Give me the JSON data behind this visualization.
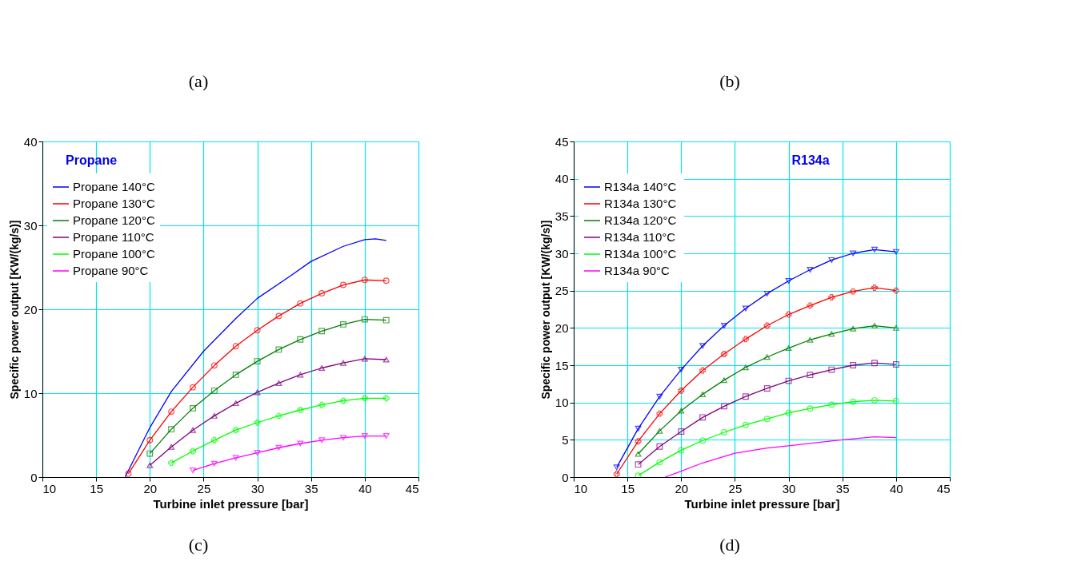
{
  "chart_data": [
    {
      "type": "line",
      "title": "Propane",
      "xlabel": "Turbine inlet pressure [bar]",
      "ylabel": "Specific power output [KW/(kg/s)]",
      "annotations": [
        "(a)",
        "(c)"
      ],
      "xlim": [
        10,
        45
      ],
      "xticks": [
        10,
        15,
        20,
        25,
        30,
        35,
        40,
        45
      ],
      "ylim": [
        0,
        40
      ],
      "yticks": [
        0,
        10,
        20,
        30,
        40
      ],
      "grid": true,
      "legend": "top left",
      "series": [
        {
          "name": "Propane 140°C",
          "color": "#0000ff",
          "marker": "none",
          "x": [
            17.7,
            20,
            22,
            25,
            28,
            30,
            33,
            35,
            38,
            40,
            41,
            42
          ],
          "values": [
            0,
            5.9,
            10.2,
            15.0,
            18.9,
            21.3,
            23.9,
            25.7,
            27.5,
            28.3,
            28.4,
            28.2
          ]
        },
        {
          "name": "Propane 130°C",
          "color": "#ff0000",
          "marker": "circle",
          "x": [
            18,
            20,
            22,
            24,
            26,
            28,
            30,
            32,
            34,
            36,
            38,
            40,
            42
          ],
          "values": [
            0.4,
            4.4,
            7.8,
            10.7,
            13.3,
            15.6,
            17.5,
            19.2,
            20.7,
            21.9,
            22.9,
            23.5,
            23.4
          ]
        },
        {
          "name": "Propane 120°C",
          "color": "#008000",
          "marker": "square",
          "x": [
            20,
            22,
            24,
            26,
            28,
            30,
            32,
            34,
            36,
            38,
            40,
            42
          ],
          "values": [
            2.8,
            5.7,
            8.2,
            10.3,
            12.2,
            13.8,
            15.2,
            16.4,
            17.4,
            18.2,
            18.8,
            18.7
          ]
        },
        {
          "name": "Propane 110°C",
          "color": "#800080",
          "marker": "triangle",
          "x": [
            20,
            22,
            24,
            26,
            28,
            30,
            32,
            34,
            36,
            38,
            40,
            42
          ],
          "values": [
            1.4,
            3.6,
            5.6,
            7.3,
            8.8,
            10.1,
            11.2,
            12.2,
            13.0,
            13.6,
            14.1,
            14.0
          ]
        },
        {
          "name": "Propane 100°C",
          "color": "#00ff00",
          "marker": "cross",
          "x": [
            22,
            24,
            26,
            28,
            30,
            32,
            34,
            36,
            38,
            40,
            42
          ],
          "values": [
            1.7,
            3.1,
            4.4,
            5.6,
            6.5,
            7.3,
            8.0,
            8.6,
            9.1,
            9.4,
            9.4
          ]
        },
        {
          "name": "Propane 90°C",
          "color": "#ff00ff",
          "marker": "triangle-down",
          "x": [
            24,
            26,
            28,
            30,
            32,
            34,
            36,
            38,
            40,
            42
          ],
          "values": [
            0.8,
            1.6,
            2.3,
            2.9,
            3.5,
            4.0,
            4.4,
            4.7,
            4.9,
            4.9
          ]
        }
      ]
    },
    {
      "type": "line",
      "title": "R134a",
      "xlabel": "Turbine inlet pressure [bar]",
      "ylabel": "Specific power output [KW/(kg/s)]",
      "annotations": [
        "(b)",
        "(d)"
      ],
      "xlim": [
        10,
        45
      ],
      "xticks": [
        10,
        15,
        20,
        25,
        30,
        35,
        40,
        45
      ],
      "ylim": [
        0,
        45
      ],
      "yticks": [
        0,
        5,
        10,
        15,
        20,
        25,
        30,
        35,
        40,
        45
      ],
      "grid": true,
      "legend": "top left",
      "series": [
        {
          "name": "R134a 140°C",
          "color": "#0000ff",
          "marker": "triangle-down",
          "x": [
            14,
            16,
            18,
            20,
            22,
            24,
            26,
            28,
            30,
            32,
            34,
            36,
            38,
            40
          ],
          "values": [
            1.3,
            6.5,
            10.8,
            14.4,
            17.6,
            20.3,
            22.6,
            24.6,
            26.3,
            27.8,
            29.1,
            30.0,
            30.5,
            30.2
          ]
        },
        {
          "name": "R134a 130°C",
          "color": "#ff0000",
          "marker": "cross",
          "x": [
            14,
            16,
            18,
            20,
            22,
            24,
            26,
            28,
            30,
            32,
            34,
            36,
            38,
            40
          ],
          "values": [
            0.4,
            4.8,
            8.5,
            11.6,
            14.3,
            16.5,
            18.5,
            20.3,
            21.8,
            23.0,
            24.1,
            24.9,
            25.4,
            25.0
          ]
        },
        {
          "name": "R134a 120°C",
          "color": "#008000",
          "marker": "triangle",
          "x": [
            16,
            18,
            20,
            22,
            24,
            26,
            28,
            30,
            32,
            34,
            36,
            38,
            40
          ],
          "values": [
            3.1,
            6.2,
            8.9,
            11.1,
            13.0,
            14.7,
            16.1,
            17.3,
            18.4,
            19.2,
            19.9,
            20.3,
            20.0
          ]
        },
        {
          "name": "R134a  110°C",
          "color": "#800080",
          "marker": "square",
          "x": [
            16,
            18,
            20,
            22,
            24,
            26,
            28,
            30,
            32,
            34,
            36,
            38,
            40
          ],
          "values": [
            1.7,
            4.1,
            6.1,
            8.0,
            9.5,
            10.8,
            11.9,
            12.9,
            13.7,
            14.4,
            15.0,
            15.3,
            15.1
          ]
        },
        {
          "name": "R134a 100°C",
          "color": "#00ff00",
          "marker": "circle",
          "x": [
            16,
            18,
            20,
            22,
            24,
            26,
            28,
            30,
            32,
            34,
            36,
            38,
            40
          ],
          "values": [
            0.2,
            2.0,
            3.6,
            4.9,
            6.0,
            7.0,
            7.8,
            8.6,
            9.2,
            9.7,
            10.1,
            10.3,
            10.2
          ]
        },
        {
          "name": "R134a 90°C",
          "color": "#ff00ff",
          "marker": "none",
          "x": [
            18.5,
            20,
            22,
            25,
            28,
            30,
            35,
            38,
            40
          ],
          "values": [
            0,
            0.8,
            1.9,
            3.2,
            3.9,
            4.2,
            5.0,
            5.4,
            5.3
          ]
        }
      ]
    }
  ]
}
